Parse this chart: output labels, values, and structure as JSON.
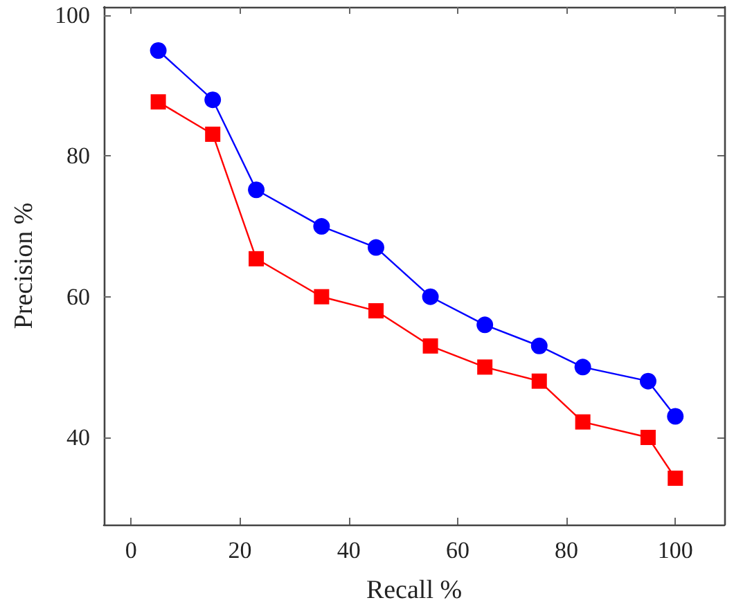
{
  "chart_data": {
    "type": "line",
    "xlabel": "Recall %",
    "ylabel": "Precision %",
    "x": [
      5,
      15,
      23,
      35,
      45,
      55,
      65,
      75,
      83,
      95,
      100
    ],
    "series": [
      {
        "color": "#0000ff",
        "marker": "circle",
        "values": [
          95,
          88,
          75.2,
          70,
          67,
          60,
          56,
          53,
          50,
          48,
          43
        ]
      },
      {
        "color": "#ff0000",
        "marker": "square",
        "values": [
          87.7,
          83.1,
          65.4,
          60,
          58,
          53,
          50,
          48,
          42.2,
          40,
          34.2
        ]
      }
    ],
    "xlim": [
      -5,
      109
    ],
    "ylim": [
      27.6,
      101.2
    ],
    "xticks": [
      0,
      20,
      40,
      60,
      80,
      100
    ],
    "yticks": [
      40,
      60,
      80,
      100
    ]
  }
}
